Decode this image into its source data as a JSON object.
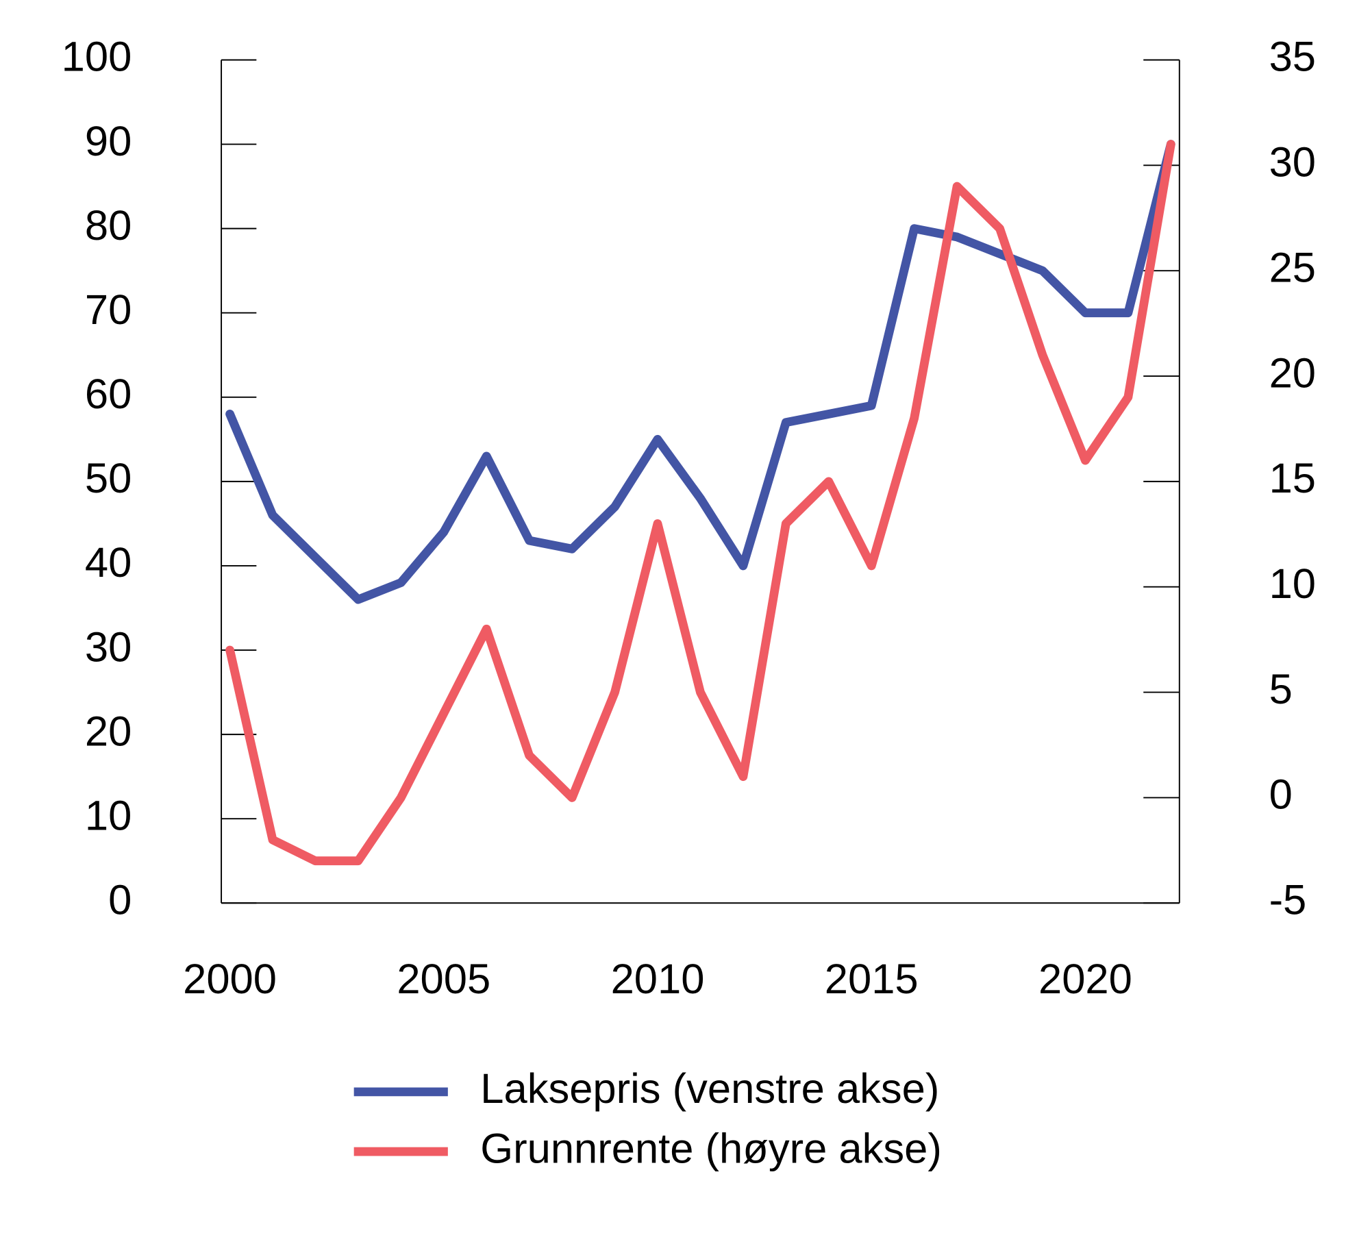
{
  "chart_data": {
    "type": "line",
    "x": [
      2000,
      2001,
      2002,
      2003,
      2004,
      2005,
      2006,
      2007,
      2008,
      2009,
      2010,
      2011,
      2012,
      2013,
      2014,
      2015,
      2016,
      2017,
      2018,
      2019,
      2020,
      2021,
      2022
    ],
    "series": [
      {
        "name": "Laksepris (venstre akse)",
        "color": "#4355a5",
        "values": [
          58,
          46,
          41,
          36,
          38,
          44,
          53,
          43,
          42,
          47,
          55,
          48,
          40,
          57,
          58,
          59,
          80,
          79,
          77,
          75,
          70,
          70,
          90
        ]
      },
      {
        "name": "Grunnrente (høyre akse)",
        "color": "#ef5b63",
        "axis": "y2",
        "values": [
          7,
          -2,
          -3,
          -3,
          0,
          4,
          8,
          2,
          0,
          5,
          13,
          5,
          1,
          13,
          15,
          11,
          18,
          29,
          27,
          21,
          16,
          19,
          31
        ]
      }
    ],
    "xlim": [
      1999.8,
      2022.2
    ],
    "xticks": [
      2000,
      2005,
      2010,
      2015,
      2020
    ],
    "ylim": [
      0,
      100
    ],
    "yticks": [
      0,
      10,
      20,
      30,
      40,
      50,
      60,
      70,
      80,
      90,
      100
    ],
    "y2lim": [
      -5,
      35
    ],
    "y2ticks": [
      -5,
      0,
      5,
      10,
      15,
      20,
      25,
      30,
      35
    ],
    "legend": "bottom"
  }
}
